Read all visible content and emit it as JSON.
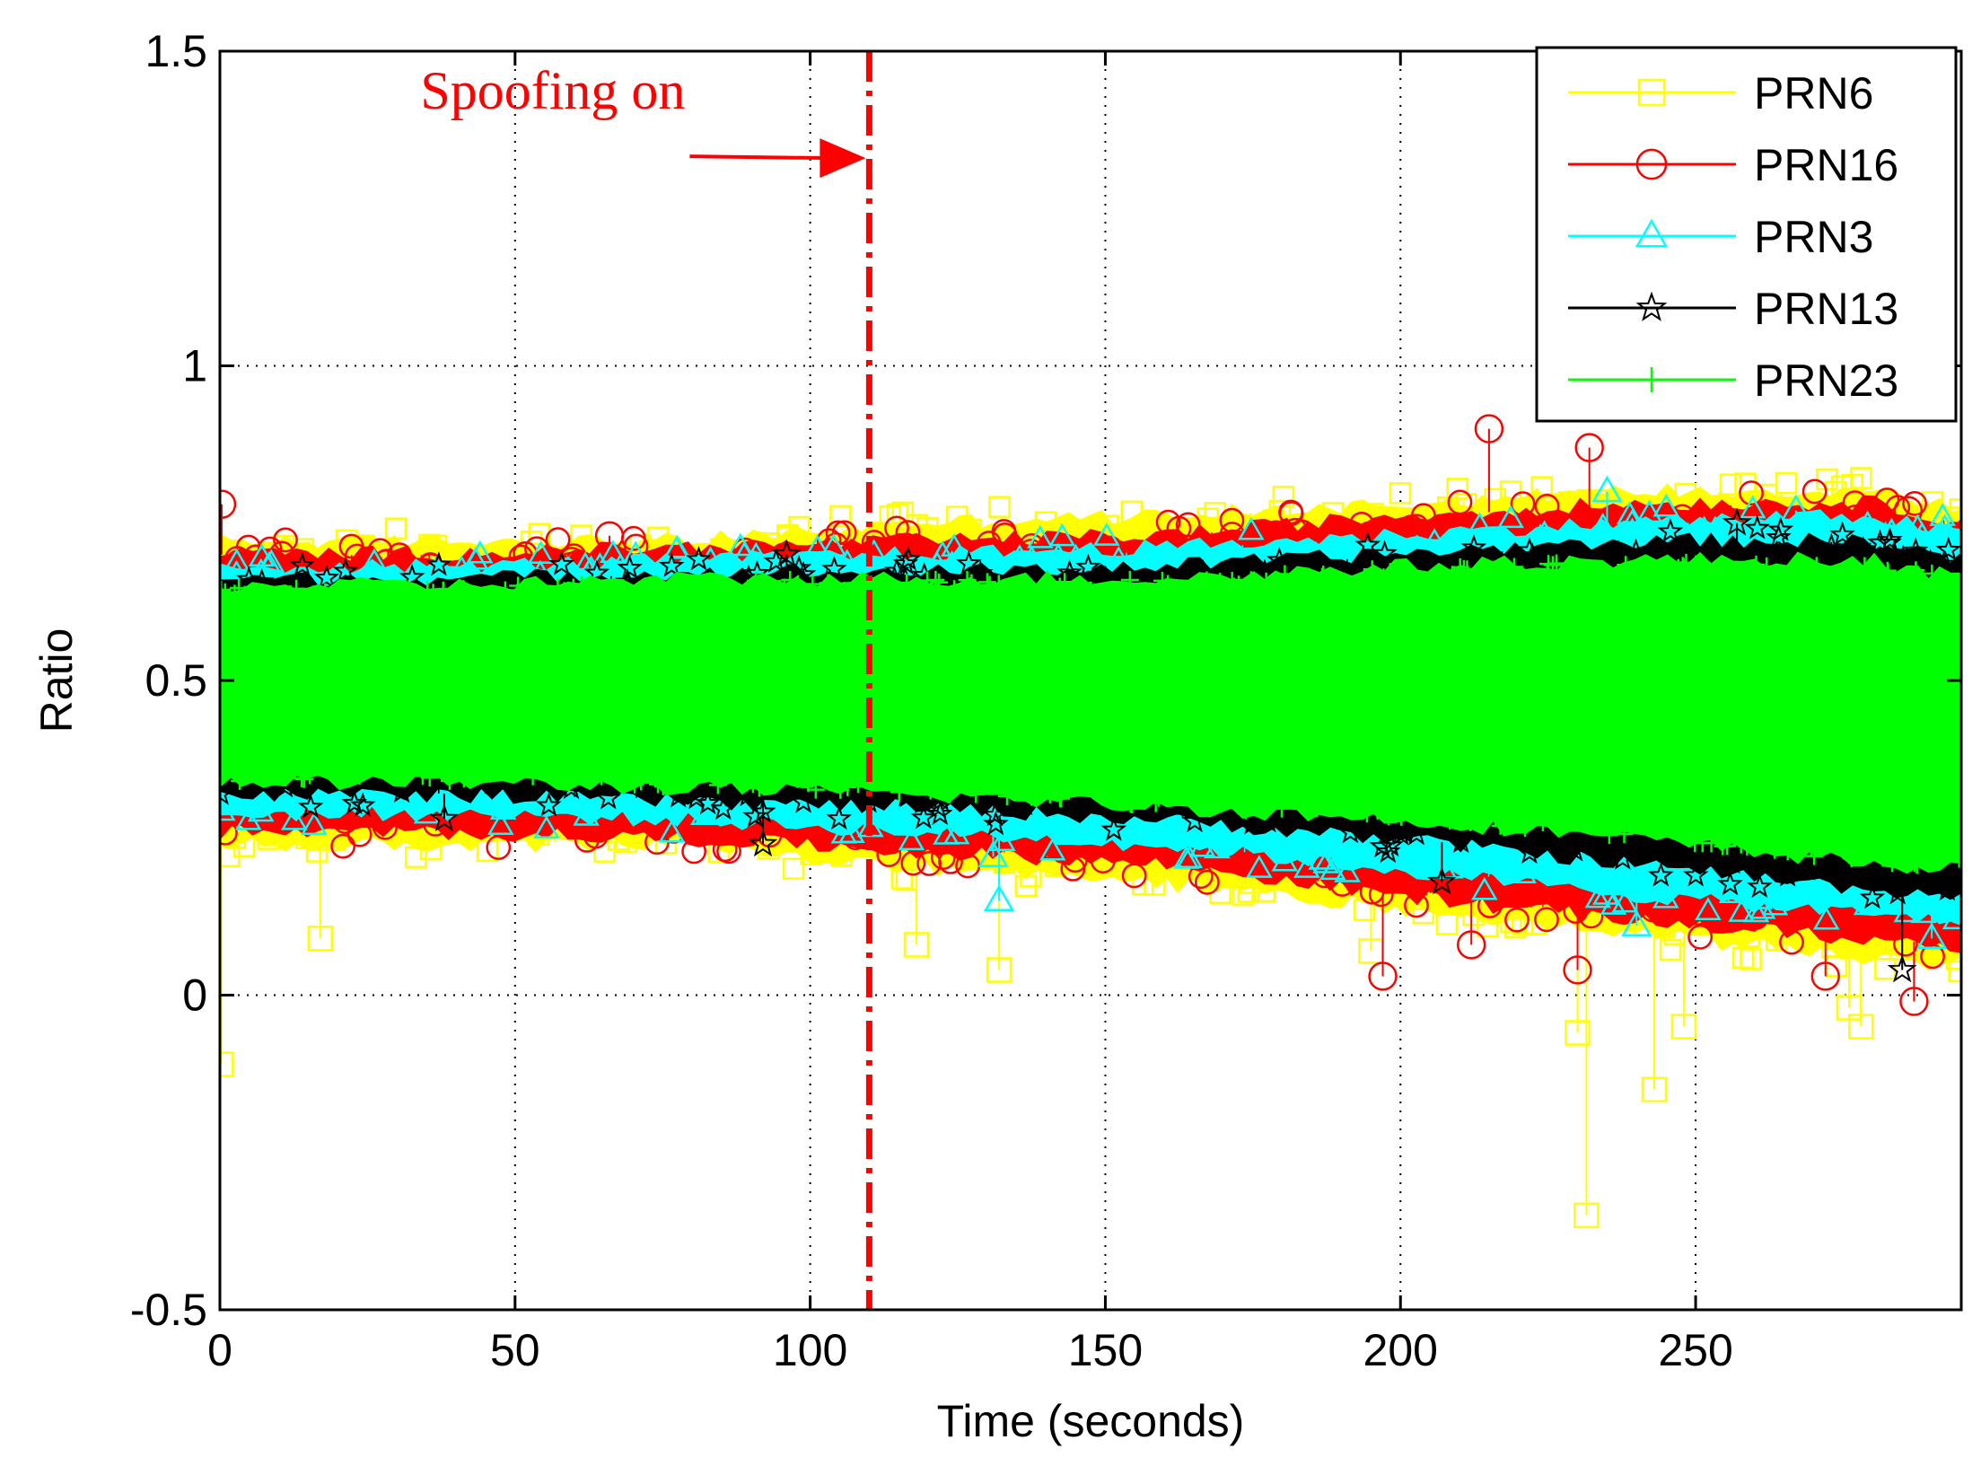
{
  "chart_data": {
    "type": "line",
    "xlabel": "Time (seconds)",
    "ylabel": "Ratio",
    "xlim": [
      0,
      295
    ],
    "ylim": [
      -0.5,
      1.5
    ],
    "xticks": [
      "0",
      "50",
      "100",
      "150",
      "200",
      "250"
    ],
    "xtick_values": [
      0,
      50,
      100,
      150,
      200,
      250
    ],
    "yticks": [
      "-0.5",
      "0",
      "0.5",
      "1",
      "1.5"
    ],
    "ytick_values": [
      -0.5,
      0,
      0.5,
      1,
      1.5
    ],
    "grid": true,
    "legend_position": "top-right",
    "annotation": {
      "text": "Spoofing on",
      "x": 110,
      "arrow_y": 1.33,
      "color": "#ff0000"
    },
    "series": [
      {
        "name": "PRN6",
        "color": "#ffff00",
        "marker": "square",
        "center": [
          0.5,
          0.5,
          0.51,
          0.5,
          0.5,
          0.49,
          0.49,
          0.48,
          0.47
        ],
        "band_lo": [
          0.24,
          0.24,
          0.24,
          0.2,
          0.18,
          0.14,
          0.1,
          0.06,
          0.05
        ],
        "band_hi": [
          0.72,
          0.72,
          0.72,
          0.75,
          0.76,
          0.78,
          0.8,
          0.8,
          0.77
        ],
        "outliers": [
          [
            0.2,
            -0.11
          ],
          [
            17,
            0.09
          ],
          [
            132,
            0.04
          ],
          [
            230,
            -0.06
          ],
          [
            231.5,
            -0.35
          ],
          [
            243,
            -0.15
          ],
          [
            248,
            -0.05
          ],
          [
            276,
            -0.02
          ],
          [
            278,
            -0.05
          ],
          [
            118,
            0.08
          ],
          [
            195,
            0.07
          ]
        ]
      },
      {
        "name": "PRN16",
        "color": "#ff0000",
        "marker": "circle",
        "center": [
          0.5,
          0.5,
          0.51,
          0.5,
          0.5,
          0.49,
          0.49,
          0.48,
          0.47
        ],
        "band_lo": [
          0.26,
          0.26,
          0.25,
          0.23,
          0.21,
          0.16,
          0.12,
          0.09,
          0.08
        ],
        "band_hi": [
          0.7,
          0.7,
          0.71,
          0.72,
          0.73,
          0.76,
          0.78,
          0.78,
          0.75
        ],
        "outliers": [
          [
            0.3,
            0.78
          ],
          [
            215,
            0.9
          ],
          [
            232,
            0.87
          ],
          [
            197,
            0.03
          ],
          [
            212,
            0.08
          ],
          [
            230,
            0.04
          ],
          [
            272,
            0.03
          ],
          [
            287,
            -0.01
          ],
          [
            286,
            0.77
          ],
          [
            66,
            0.73
          ]
        ]
      },
      {
        "name": "PRN3",
        "color": "#00ffff",
        "marker": "triangle",
        "center": [
          0.5,
          0.5,
          0.51,
          0.5,
          0.5,
          0.49,
          0.49,
          0.48,
          0.47
        ],
        "band_lo": [
          0.29,
          0.29,
          0.28,
          0.26,
          0.24,
          0.2,
          0.16,
          0.13,
          0.12
        ],
        "band_hi": [
          0.68,
          0.68,
          0.69,
          0.7,
          0.71,
          0.73,
          0.75,
          0.76,
          0.73
        ],
        "outliers": [
          [
            132,
            0.15
          ],
          [
            131,
            0.22
          ],
          [
            267,
            0.77
          ],
          [
            235,
            0.8
          ],
          [
            290,
            0.09
          ],
          [
            240,
            0.11
          ]
        ]
      },
      {
        "name": "PRN13",
        "color": "#000000",
        "marker": "star",
        "center": [
          0.5,
          0.5,
          0.51,
          0.5,
          0.5,
          0.49,
          0.49,
          0.48,
          0.47
        ],
        "band_lo": [
          0.32,
          0.32,
          0.31,
          0.3,
          0.28,
          0.25,
          0.21,
          0.17,
          0.16
        ],
        "band_hi": [
          0.66,
          0.66,
          0.67,
          0.67,
          0.68,
          0.7,
          0.72,
          0.72,
          0.69
        ],
        "outliers": [
          [
            92,
            0.24
          ],
          [
            38,
            0.28
          ],
          [
            207,
            0.18
          ],
          [
            257,
            0.75
          ],
          [
            273,
            0.71
          ],
          [
            285,
            0.04
          ],
          [
            96,
            0.7
          ]
        ]
      },
      {
        "name": "PRN23",
        "color": "#00ff00",
        "marker": "plus",
        "center": [
          0.5,
          0.5,
          0.51,
          0.5,
          0.5,
          0.49,
          0.49,
          0.48,
          0.47
        ],
        "band_lo": [
          0.34,
          0.34,
          0.33,
          0.32,
          0.3,
          0.28,
          0.25,
          0.21,
          0.2
        ],
        "band_hi": [
          0.65,
          0.65,
          0.66,
          0.66,
          0.66,
          0.68,
          0.69,
          0.69,
          0.66
        ],
        "outliers": []
      }
    ],
    "band_x": [
      0,
      40,
      80,
      120,
      160,
      200,
      240,
      280,
      295
    ]
  }
}
